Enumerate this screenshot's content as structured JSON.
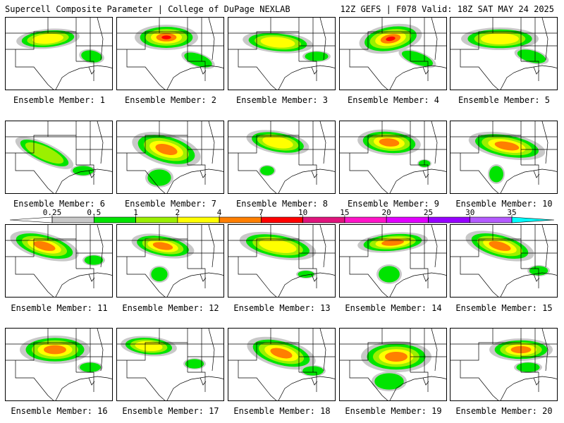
{
  "header": {
    "left": "Supercell Composite Parameter | College of DuPage NEXLAB",
    "right": "12Z GEFS | F078 Valid: 18Z SAT MAY 24 2025"
  },
  "caption_prefix": "Ensemble Member: ",
  "members": [
    {
      "label": "Ensemble Member: 1",
      "max_level": "2-4"
    },
    {
      "label": "Ensemble Member: 2",
      "max_level": "7-10"
    },
    {
      "label": "Ensemble Member: 3",
      "max_level": "2-4"
    },
    {
      "label": "Ensemble Member: 4",
      "max_level": "7-10"
    },
    {
      "label": "Ensemble Member: 5",
      "max_level": "2-4"
    },
    {
      "label": "Ensemble Member: 6",
      "max_level": "1-2"
    },
    {
      "label": "Ensemble Member: 7",
      "max_level": "4-7"
    },
    {
      "label": "Ensemble Member: 8",
      "max_level": "2-4"
    },
    {
      "label": "Ensemble Member: 9",
      "max_level": "4-7"
    },
    {
      "label": "Ensemble Member: 10",
      "max_level": "4-7"
    },
    {
      "label": "Ensemble Member: 11",
      "max_level": "4-7"
    },
    {
      "label": "Ensemble Member: 12",
      "max_level": "4-7"
    },
    {
      "label": "Ensemble Member: 13",
      "max_level": "2-4"
    },
    {
      "label": "Ensemble Member: 14",
      "max_level": "4-7"
    },
    {
      "label": "Ensemble Member: 15",
      "max_level": "4-7"
    },
    {
      "label": "Ensemble Member: 16",
      "max_level": "4-7"
    },
    {
      "label": "Ensemble Member: 17",
      "max_level": "2-4"
    },
    {
      "label": "Ensemble Member: 18",
      "max_level": "4-7"
    },
    {
      "label": "Ensemble Member: 19",
      "max_level": "4-7"
    },
    {
      "label": "Ensemble Member: 20",
      "max_level": "4-7"
    }
  ],
  "colorbar": {
    "ticks": [
      "0.25",
      "0.5",
      "1",
      "2",
      "4",
      "7",
      "10",
      "15",
      "20",
      "25",
      "30",
      "35"
    ],
    "bins": [
      {
        "range": "0.25-0.5",
        "color": "#c8c8c8"
      },
      {
        "range": "0.5-1",
        "color": "#00e400"
      },
      {
        "range": "1-2",
        "color": "#9bf000"
      },
      {
        "range": "2-4",
        "color": "#ffff00"
      },
      {
        "range": "4-7",
        "color": "#ff7f00"
      },
      {
        "range": "7-10",
        "color": "#ff0000"
      },
      {
        "range": "10-15",
        "color": "#e0147d"
      },
      {
        "range": "15-20",
        "color": "#ff14c8"
      },
      {
        "range": "20-25",
        "color": "#e100ff"
      },
      {
        "range": "25-30",
        "color": "#9600ff"
      },
      {
        "range": "30-35",
        "color": "#b45aff"
      },
      {
        "range": ">35",
        "color": "#00ffff"
      }
    ]
  }
}
